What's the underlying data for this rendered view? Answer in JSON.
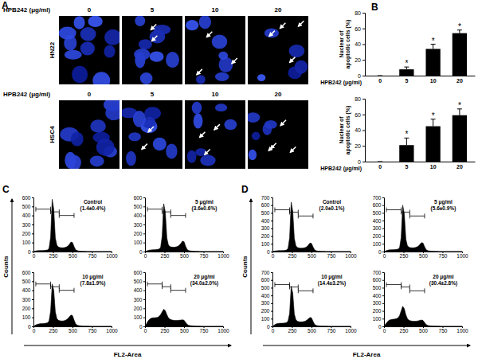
{
  "images": {
    "panel": "A",
    "header": "HPB242 (μg/ml)",
    "doses": [
      "0",
      "5",
      "10",
      "20"
    ],
    "rows": [
      "HN22",
      "HSC4"
    ]
  },
  "chart_data": [
    {
      "type": "bar",
      "panel": "B",
      "xlabel": "HPB242 (μg/ml)",
      "ylabel": "Nuclear of apoptotic cells (%)",
      "categories": [
        "0",
        "5",
        "10",
        "20"
      ],
      "values": [
        0,
        8,
        34,
        54
      ],
      "errors": [
        0,
        3,
        6,
        4
      ],
      "annotations": [
        null,
        "*",
        "*",
        "*"
      ],
      "color": "#000000",
      "ylim": [
        0,
        80
      ],
      "yticks": [
        0,
        20,
        40,
        60,
        80
      ]
    },
    {
      "type": "bar",
      "xlabel": "HPB242 (μg/ml)",
      "ylabel": "Nuclear of apoptotic cells (%)",
      "categories": [
        "0",
        "5",
        "10",
        "20"
      ],
      "values": [
        0,
        21,
        45,
        59
      ],
      "errors": [
        0,
        9,
        9,
        8
      ],
      "annotations": [
        null,
        "*",
        "*",
        "*"
      ],
      "color": "#000000",
      "ylim": [
        0,
        80
      ],
      "yticks": [
        0,
        20,
        40,
        60,
        80
      ]
    },
    {
      "type": "area",
      "panel": "C",
      "xlabel": "FL2-Area",
      "ylabel": "Counts",
      "color": "#000000",
      "xlim": [
        0,
        1000
      ],
      "xticks": [
        0,
        250,
        500,
        750,
        1000
      ],
      "ylim": [
        0,
        600
      ],
      "yticks": [
        0,
        100,
        200,
        300,
        400,
        500,
        600
      ],
      "gates": [
        {
          "x": [
            30,
            220
          ],
          "y": 470
        },
        {
          "x": [
            220,
            330
          ],
          "y": 440
        },
        {
          "x": [
            330,
            520
          ],
          "y": 400
        }
      ],
      "x": [
        0,
        20,
        40,
        60,
        80,
        100,
        120,
        140,
        160,
        180,
        200,
        220,
        240,
        260,
        280,
        300,
        320,
        340,
        360,
        380,
        400,
        420,
        440,
        460,
        480,
        500,
        520,
        540,
        560,
        580,
        600,
        620,
        640,
        660,
        680,
        700,
        720,
        740,
        760,
        780,
        800,
        820,
        840,
        860,
        880,
        900,
        920,
        940,
        960,
        980,
        1000
      ],
      "subplots": [
        {
          "title": "Control",
          "annotation": "(1.4±0.4%)",
          "values": [
            0,
            4,
            8,
            10,
            11,
            12,
            12,
            13,
            15,
            18,
            35,
            160,
            580,
            470,
            150,
            70,
            50,
            45,
            42,
            42,
            45,
            50,
            60,
            80,
            105,
            100,
            55,
            20,
            10,
            6,
            4,
            3,
            2,
            2,
            1,
            1,
            1,
            1,
            0,
            0,
            0,
            0,
            0,
            0,
            0,
            0,
            0,
            0,
            0,
            0,
            0
          ]
        },
        {
          "title": "5 μg/ml",
          "annotation": "(3.6±0.6%)",
          "values": [
            0,
            6,
            12,
            16,
            18,
            20,
            20,
            22,
            24,
            28,
            45,
            170,
            530,
            440,
            150,
            72,
            55,
            50,
            48,
            48,
            52,
            58,
            70,
            90,
            115,
            110,
            60,
            22,
            11,
            7,
            5,
            4,
            3,
            2,
            2,
            1,
            1,
            1,
            0,
            0,
            0,
            0,
            0,
            0,
            0,
            0,
            0,
            0,
            0,
            0,
            0
          ]
        },
        {
          "title": "10 μg/ml",
          "annotation": "(7.8±1.9%)",
          "values": [
            0,
            10,
            20,
            25,
            28,
            30,
            30,
            32,
            35,
            40,
            60,
            170,
            470,
            400,
            160,
            85,
            68,
            62,
            60,
            60,
            65,
            72,
            85,
            105,
            125,
            120,
            70,
            28,
            14,
            8,
            6,
            4,
            3,
            3,
            2,
            2,
            1,
            1,
            0,
            0,
            0,
            0,
            0,
            0,
            0,
            0,
            0,
            0,
            0,
            0,
            0
          ]
        },
        {
          "title": "20 μg/ml",
          "annotation": "(34.0±2.0%)",
          "values": [
            0,
            30,
            60,
            80,
            90,
            95,
            95,
            98,
            100,
            110,
            130,
            160,
            190,
            175,
            130,
            95,
            80,
            72,
            68,
            66,
            66,
            66,
            68,
            70,
            72,
            68,
            45,
            22,
            12,
            8,
            6,
            5,
            4,
            3,
            2,
            2,
            1,
            1,
            0,
            0,
            0,
            0,
            0,
            0,
            0,
            0,
            0,
            0,
            0,
            0,
            0
          ]
        }
      ]
    },
    {
      "type": "area",
      "panel": "D",
      "xlabel": "FL2-Area",
      "ylabel": "Counts",
      "color": "#000000",
      "xlim": [
        0,
        1000
      ],
      "xticks": [
        0,
        250,
        500,
        750,
        1000
      ],
      "ylim": [
        0,
        700
      ],
      "yticks": [
        0,
        100,
        200,
        300,
        400,
        500,
        600,
        700
      ],
      "gates": [
        {
          "x": [
            30,
            220
          ],
          "y": 540
        },
        {
          "x": [
            220,
            330
          ],
          "y": 510
        },
        {
          "x": [
            330,
            520
          ],
          "y": 460
        }
      ],
      "x": [
        0,
        20,
        40,
        60,
        80,
        100,
        120,
        140,
        160,
        180,
        200,
        220,
        240,
        260,
        280,
        300,
        320,
        340,
        360,
        380,
        400,
        420,
        440,
        460,
        480,
        500,
        520,
        540,
        560,
        580,
        600,
        620,
        640,
        660,
        680,
        700,
        720,
        740,
        760,
        780,
        800,
        820,
        840,
        860,
        880,
        900,
        920,
        940,
        960,
        980,
        1000
      ],
      "subplots": [
        {
          "title": "Control",
          "annotation": "(2.0±0.1%)",
          "values": [
            0,
            4,
            8,
            10,
            12,
            12,
            13,
            14,
            16,
            20,
            40,
            180,
            640,
            520,
            170,
            75,
            52,
            46,
            44,
            44,
            46,
            52,
            62,
            85,
            110,
            105,
            58,
            22,
            10,
            6,
            4,
            3,
            2,
            2,
            1,
            1,
            1,
            1,
            0,
            0,
            0,
            0,
            0,
            0,
            0,
            0,
            0,
            0,
            0,
            0,
            0
          ]
        },
        {
          "title": "5 μg/ml",
          "annotation": "(5.6±0.9%)",
          "values": [
            0,
            8,
            15,
            20,
            22,
            24,
            24,
            26,
            28,
            32,
            52,
            180,
            600,
            490,
            160,
            75,
            56,
            50,
            48,
            48,
            52,
            58,
            70,
            92,
            115,
            110,
            62,
            24,
            12,
            7,
            5,
            4,
            3,
            2,
            2,
            1,
            1,
            1,
            0,
            0,
            0,
            0,
            0,
            0,
            0,
            0,
            0,
            0,
            0,
            0,
            0
          ]
        },
        {
          "title": "10 μg/ml",
          "annotation": "(14.4±3.2%)",
          "values": [
            0,
            14,
            28,
            35,
            38,
            40,
            40,
            42,
            45,
            50,
            70,
            170,
            520,
            430,
            160,
            85,
            66,
            60,
            58,
            58,
            62,
            68,
            80,
            98,
            115,
            110,
            65,
            26,
            13,
            8,
            6,
            4,
            3,
            3,
            2,
            2,
            1,
            1,
            0,
            0,
            0,
            0,
            0,
            0,
            0,
            0,
            0,
            0,
            0,
            0,
            0
          ]
        },
        {
          "title": "20 μg/ml",
          "annotation": "(30.4±2.8%)",
          "values": [
            0,
            28,
            55,
            75,
            85,
            90,
            92,
            95,
            100,
            110,
            140,
            200,
            260,
            230,
            150,
            100,
            80,
            72,
            68,
            66,
            66,
            68,
            72,
            78,
            82,
            76,
            50,
            24,
            12,
            8,
            6,
            5,
            4,
            3,
            2,
            2,
            1,
            1,
            0,
            0,
            0,
            0,
            0,
            0,
            0,
            0,
            0,
            0,
            0,
            0,
            0
          ]
        }
      ]
    }
  ]
}
